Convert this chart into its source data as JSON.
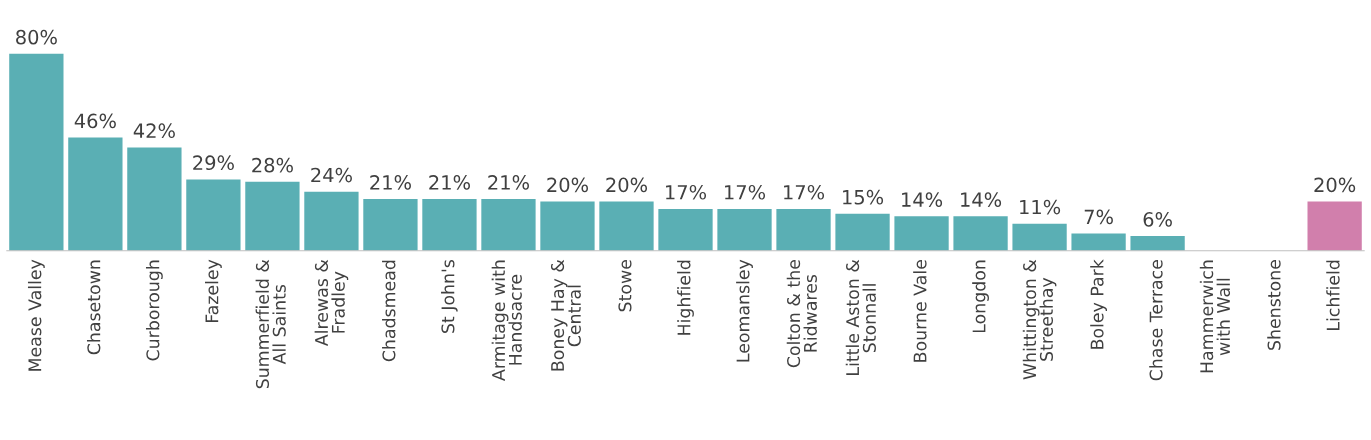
{
  "chart_data": {
    "type": "bar",
    "categories": [
      "Mease Valley",
      "Chasetown",
      "Curborough",
      "Fazeley",
      "Summerfield &\nAll Saints",
      "Alrewas &\nFradley",
      "Chadsmead",
      "St John's",
      "Armitage with\nHandsacre",
      "Boney Hay &\nCentral",
      "Stowe",
      "Highfield",
      "Leomansley",
      "Colton & the\nRidwares",
      "Little Aston &\nStonnall",
      "Bourne Vale",
      "Longdon",
      "Whittington &\nStreethay",
      "Boley Park",
      "Chase Terrace",
      "Hammerwich\nwith Wall",
      "Shenstone",
      "Lichfield"
    ],
    "values": [
      80,
      46,
      42,
      29,
      28,
      24,
      21,
      21,
      21,
      20,
      20,
      17,
      17,
      17,
      15,
      14,
      14,
      11,
      7,
      6,
      null,
      null,
      20
    ],
    "value_labels": [
      "80%",
      "46%",
      "42%",
      "29%",
      "28%",
      "24%",
      "21%",
      "21%",
      "21%",
      "20%",
      "20%",
      "17%",
      "17%",
      "17%",
      "15%",
      "14%",
      "14%",
      "11%",
      "7%",
      "6%",
      null,
      null,
      "20%"
    ],
    "colors": [
      "#5aafb4",
      "#5aafb4",
      "#5aafb4",
      "#5aafb4",
      "#5aafb4",
      "#5aafb4",
      "#5aafb4",
      "#5aafb4",
      "#5aafb4",
      "#5aafb4",
      "#5aafb4",
      "#5aafb4",
      "#5aafb4",
      "#5aafb4",
      "#5aafb4",
      "#5aafb4",
      "#5aafb4",
      "#5aafb4",
      "#5aafb4",
      "#5aafb4",
      "#5aafb4",
      "#5aafb4",
      "#d17fac"
    ],
    "grid": false,
    "legend": false
  }
}
